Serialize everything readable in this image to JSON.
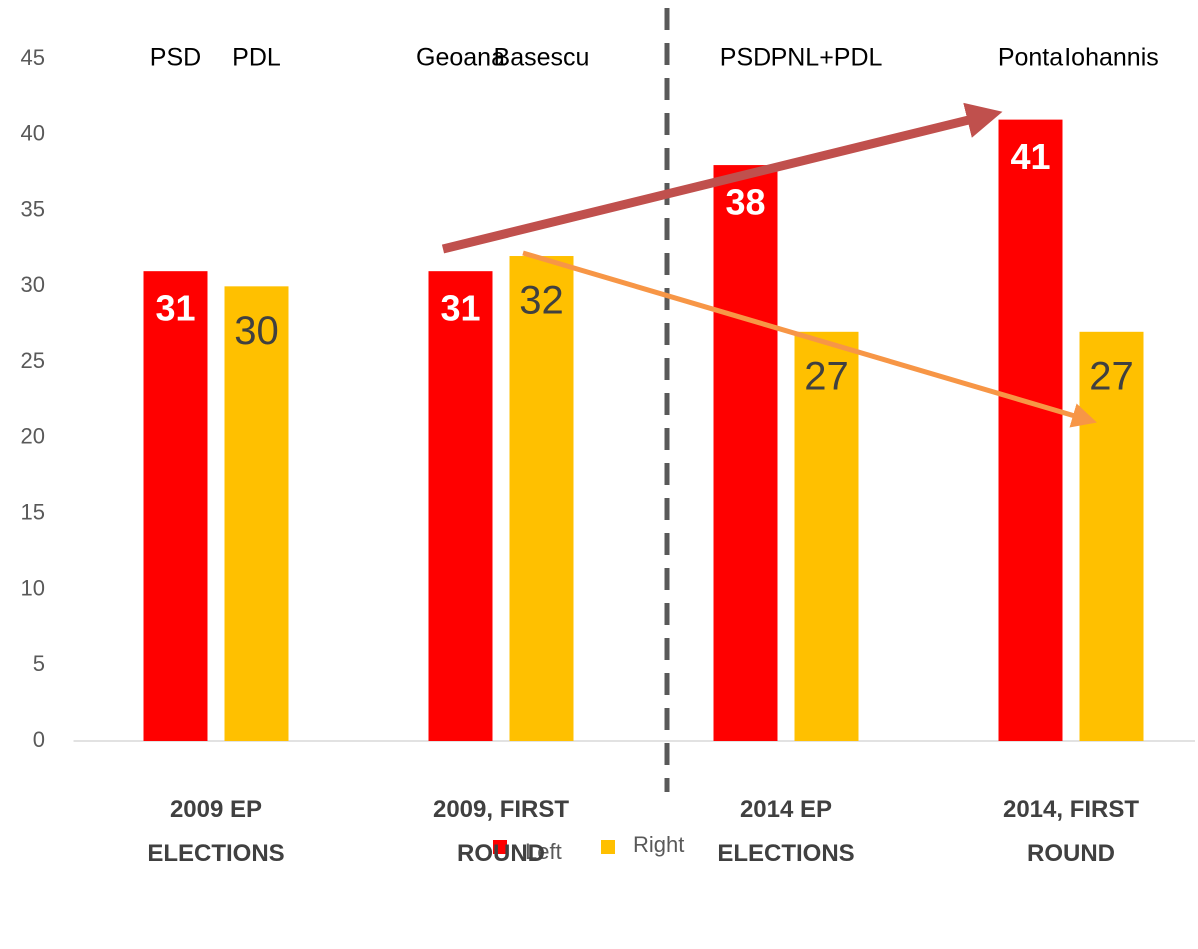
{
  "chart_data": {
    "type": "bar",
    "categories": [
      "2009 EP ELECTIONS",
      "2009, FIRST ROUND",
      "2014 EP ELECTIONS",
      "2014, FIRST ROUND"
    ],
    "series": [
      {
        "name": "Left",
        "color": "#ff0000",
        "values": [
          31,
          31,
          38,
          41
        ],
        "labels": [
          "PSD",
          "Geoana",
          "PSD",
          "Ponta"
        ]
      },
      {
        "name": "Right",
        "color": "#ffc000",
        "values": [
          30,
          32,
          27,
          27
        ],
        "labels": [
          "PDL",
          "Basescu",
          "PNL+PDL",
          "Iohannis"
        ]
      }
    ],
    "ylim": [
      0,
      45
    ],
    "yticks": [
      0,
      5,
      10,
      15,
      20,
      25,
      30,
      35,
      40,
      45
    ],
    "grid": false,
    "legend": "bottom"
  }
}
